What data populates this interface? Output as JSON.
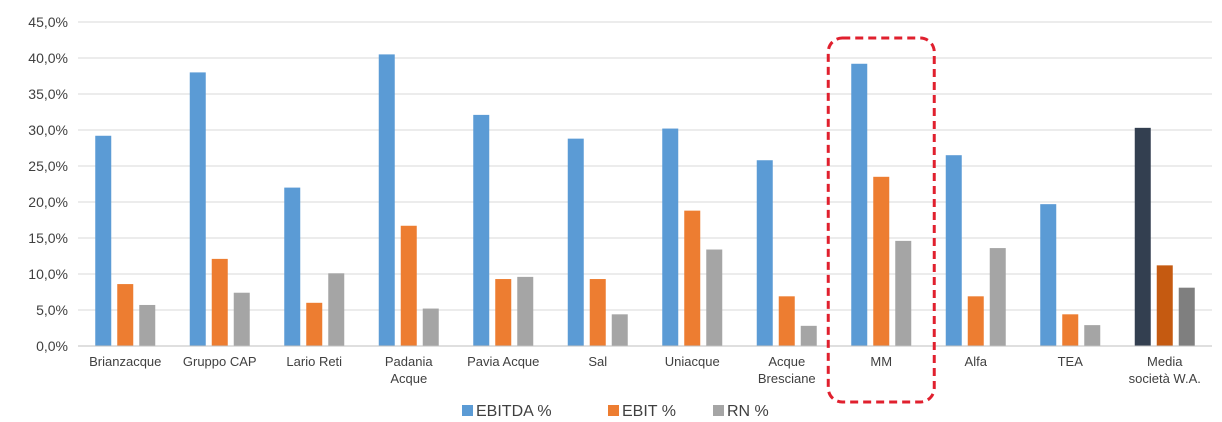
{
  "chart_data": {
    "type": "bar",
    "categories": [
      [
        "Brianzacque"
      ],
      [
        "Gruppo CAP"
      ],
      [
        "Lario Reti"
      ],
      [
        "Padania",
        "Acque"
      ],
      [
        "Pavia Acque"
      ],
      [
        "Sal"
      ],
      [
        "Uniacque"
      ],
      [
        "Acque",
        "Bresciane"
      ],
      [
        "MM"
      ],
      [
        "Alfa"
      ],
      [
        "TEA"
      ],
      [
        "Media",
        "società W.A."
      ]
    ],
    "series": [
      {
        "name": "EBITDA %",
        "color": "#5B9BD5",
        "values": [
          29.2,
          38.0,
          22.0,
          40.5,
          32.1,
          28.8,
          30.2,
          25.8,
          39.2,
          26.5,
          19.7,
          30.3
        ]
      },
      {
        "name": "EBIT %",
        "color": "#ED7D31",
        "values": [
          8.6,
          12.1,
          6.0,
          16.7,
          9.3,
          9.3,
          18.8,
          6.9,
          23.5,
          6.9,
          4.4,
          11.2
        ]
      },
      {
        "name": "RN %",
        "color": "#A5A5A5",
        "values": [
          5.7,
          7.4,
          10.1,
          5.2,
          9.6,
          4.4,
          13.4,
          2.8,
          14.6,
          13.6,
          2.9,
          8.1
        ]
      }
    ],
    "average_bar_colors": [
      "#333F50",
      "#C55A11",
      "#7F7F7F"
    ],
    "average_index": 11,
    "highlight_index": 8,
    "highlight_color": "#E0202E",
    "ylim": [
      0,
      45
    ],
    "yticks": [
      0,
      5,
      10,
      15,
      20,
      25,
      30,
      35,
      40,
      45
    ],
    "ytick_labels": [
      "0,0%",
      "5,0%",
      "10,0%",
      "15,0%",
      "20,0%",
      "25,0%",
      "30,0%",
      "35,0%",
      "40,0%",
      "45,0%"
    ],
    "grid": true,
    "legend": "bottom",
    "title": "",
    "xlabel": "",
    "ylabel": ""
  }
}
